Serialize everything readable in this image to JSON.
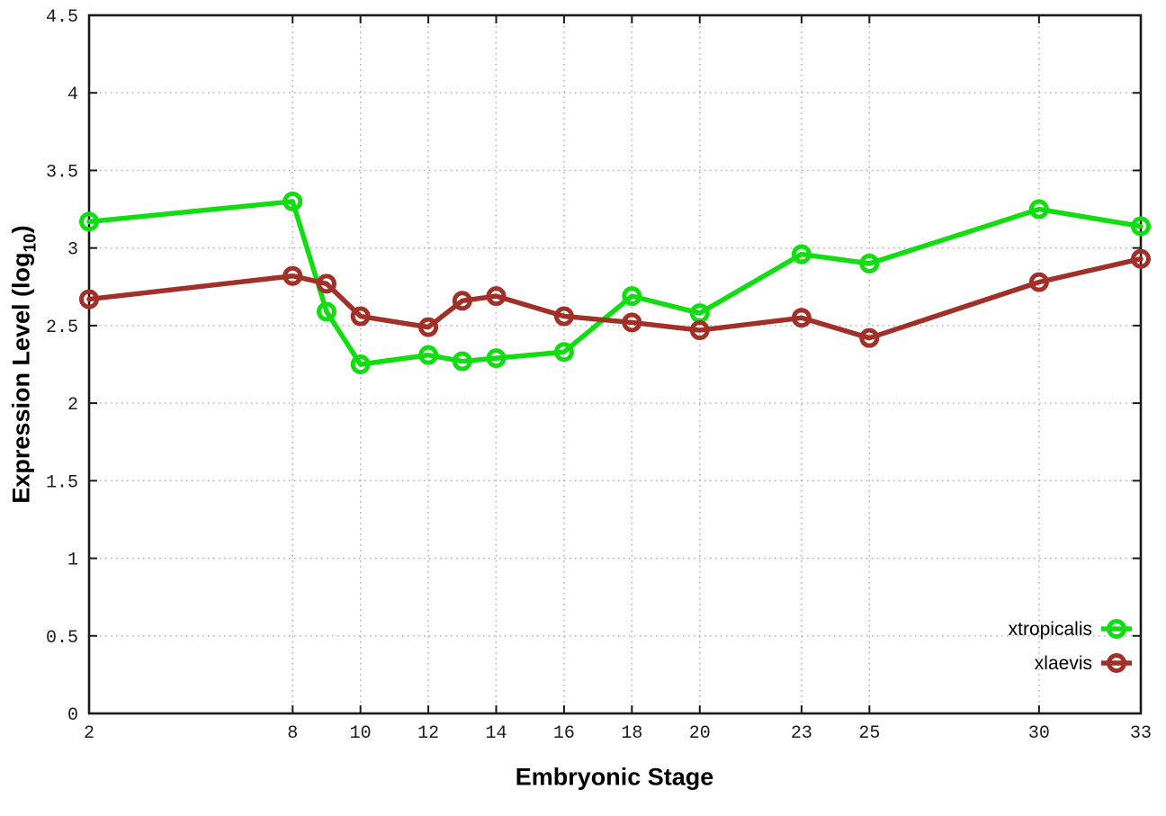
{
  "chart_data": {
    "type": "line",
    "x": [
      2,
      8,
      9,
      10,
      12,
      13,
      14,
      16,
      18,
      20,
      23,
      25,
      30,
      33
    ],
    "series": [
      {
        "name": "xtropicalis",
        "color": "#12dc12",
        "values": [
          3.17,
          3.3,
          2.59,
          2.25,
          2.31,
          2.27,
          2.29,
          2.33,
          2.69,
          2.58,
          2.96,
          2.9,
          3.25,
          3.14
        ]
      },
      {
        "name": "xlaevis",
        "color": "#a03028",
        "values": [
          2.67,
          2.82,
          2.77,
          2.56,
          2.49,
          2.66,
          2.69,
          2.56,
          2.52,
          2.47,
          2.55,
          2.42,
          2.78,
          2.93
        ]
      }
    ],
    "title": "",
    "xlabel": "Embryonic Stage",
    "ylabel": "Expression Level (log10)",
    "ylabel_parts": {
      "main": "Expression Level (log",
      "sub": "10",
      "end": ")"
    },
    "xlim": [
      2,
      33
    ],
    "ylim": [
      0,
      4.5
    ],
    "xticks": {
      "values": [
        2,
        8,
        10,
        12,
        14,
        16,
        18,
        20,
        23,
        25,
        30,
        33
      ],
      "labels": [
        "2",
        "8",
        "10",
        "12",
        "14",
        "16",
        "18",
        "20",
        "23",
        "25",
        "30",
        "33"
      ]
    },
    "yticks": {
      "values": [
        0,
        0.5,
        1,
        1.5,
        2,
        2.5,
        3,
        3.5,
        4,
        4.5
      ],
      "labels": [
        "0",
        "0.5",
        "1",
        "1.5",
        "2",
        "2.5",
        "3",
        "3.5",
        "4",
        "4.5"
      ]
    },
    "grid": true,
    "legend_position": "bottom-right",
    "colors": {
      "axis": "#1a1a1a",
      "grid": "#a8a8a8",
      "tick_text": "#1c1c1c",
      "background": "#ffffff"
    }
  }
}
